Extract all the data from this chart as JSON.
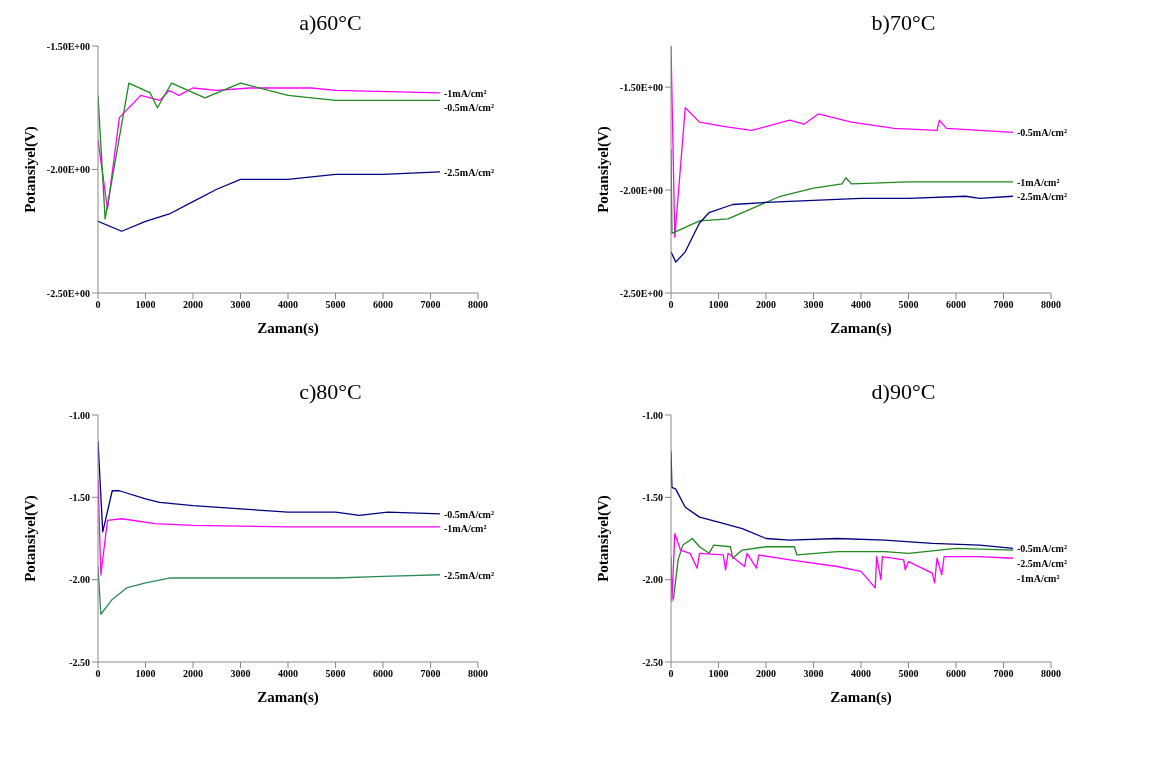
{
  "chart_data": [
    {
      "type": "line",
      "title": "a)60°C",
      "xlabel": "Zaman(s)",
      "ylabel": "Potansiyel(V)",
      "xlim": [
        0,
        8000
      ],
      "xticks": [
        0,
        1000,
        2000,
        3000,
        4000,
        5000,
        6000,
        7000,
        8000
      ],
      "ylim": [
        -2.5,
        -1.5
      ],
      "yticks": [
        {
          "value": -2.5,
          "label": "-2.50E+00"
        },
        {
          "value": -2.0,
          "label": "-2.00E+00"
        },
        {
          "value": -1.5,
          "label": "-1.50E+00"
        }
      ],
      "grid": false,
      "legend": false,
      "marker": "none",
      "line_style": "solid",
      "series": [
        {
          "name": "-1mA/cm²",
          "color": "#ff00ff",
          "x": [
            0,
            200,
            450,
            900,
            1100,
            1300,
            1500,
            1700,
            2000,
            2500,
            3200,
            4500,
            5000,
            7200
          ],
          "values": [
            -1.88,
            -2.16,
            -1.79,
            -1.7,
            -1.71,
            -1.72,
            -1.68,
            -1.7,
            -1.67,
            -1.68,
            -1.67,
            -1.67,
            -1.68,
            -1.69
          ]
        },
        {
          "name": "-0.5mA/cm²",
          "color": "#1f8a1f",
          "x": [
            0,
            150,
            650,
            1100,
            1250,
            1550,
            2250,
            3000,
            4000,
            5000,
            7200
          ],
          "values": [
            -1.7,
            -2.2,
            -1.65,
            -1.69,
            -1.75,
            -1.65,
            -1.71,
            -1.65,
            -1.7,
            -1.72,
            -1.72
          ]
        },
        {
          "name": "-2.5mA/cm²",
          "color": "#000080",
          "x": [
            0,
            500,
            1000,
            1500,
            2000,
            2500,
            3000,
            3500,
            4000,
            5000,
            6000,
            7200
          ],
          "values": [
            -2.21,
            -2.25,
            -2.21,
            -2.18,
            -2.13,
            -2.08,
            -2.04,
            -2.04,
            -2.04,
            -2.02,
            -2.02,
            -2.01
          ]
        }
      ]
    },
    {
      "type": "line",
      "title": "b)70°C",
      "xlabel": "Zaman(s)",
      "ylabel": "Potansiyel(V)",
      "xlim": [
        0,
        8000
      ],
      "xticks": [
        0,
        1000,
        2000,
        3000,
        4000,
        5000,
        6000,
        7000,
        8000
      ],
      "ylim": [
        -2.5,
        -1.3
      ],
      "yticks": [
        {
          "value": -2.5,
          "label": "-2.50E+00"
        },
        {
          "value": -2.0,
          "label": "-2.00E+00"
        },
        {
          "value": -1.5,
          "label": "-1.50E+00"
        }
      ],
      "grid": false,
      "legend": false,
      "marker": "none",
      "line_style": "solid",
      "series": [
        {
          "name": "-0.5mA/cm²",
          "color": "#ff00ff",
          "x": [
            0,
            80,
            300,
            600,
            1100,
            1700,
            2500,
            2800,
            3100,
            3800,
            4700,
            5600,
            5650,
            5800,
            7200
          ],
          "values": [
            -1.3,
            -2.23,
            -1.6,
            -1.67,
            -1.69,
            -1.71,
            -1.66,
            -1.68,
            -1.63,
            -1.67,
            -1.7,
            -1.71,
            -1.66,
            -1.7,
            -1.72
          ]
        },
        {
          "name": "-1mA/cm²",
          "color": "#1f8a1f",
          "x": [
            0,
            20,
            600,
            1200,
            1700,
            2300,
            3000,
            3600,
            3680,
            3800,
            5000,
            7200
          ],
          "values": [
            -1.8,
            -2.21,
            -2.15,
            -2.14,
            -2.09,
            -2.03,
            -1.99,
            -1.97,
            -1.94,
            -1.97,
            -1.96,
            -1.96
          ]
        },
        {
          "name": "-2.5mA/cm²",
          "color": "#000080",
          "x": [
            0,
            100,
            300,
            600,
            800,
            1300,
            2000,
            3000,
            4000,
            5000,
            6200,
            6500,
            7200
          ],
          "values": [
            -2.3,
            -2.35,
            -2.3,
            -2.16,
            -2.11,
            -2.07,
            -2.06,
            -2.05,
            -2.04,
            -2.04,
            -2.03,
            -2.04,
            -2.03
          ]
        }
      ]
    },
    {
      "type": "line",
      "title": "c)80°C",
      "xlabel": "Zaman(s)",
      "ylabel": "Potansiyel(V)",
      "xlim": [
        0,
        8000
      ],
      "xticks": [
        0,
        1000,
        2000,
        3000,
        4000,
        5000,
        6000,
        7000,
        8000
      ],
      "ylim": [
        -2.5,
        -1.0
      ],
      "yticks": [
        {
          "value": -2.5,
          "label": "-2.50"
        },
        {
          "value": -2.0,
          "label": "-2.00"
        },
        {
          "value": -1.5,
          "label": "-1.50"
        },
        {
          "value": -1.0,
          "label": "-1.00"
        }
      ],
      "grid": false,
      "legend": false,
      "marker": "none",
      "line_style": "solid",
      "series": [
        {
          "name": "-0.5mA/cm²",
          "color": "#000080",
          "x": [
            0,
            100,
            300,
            450,
            1000,
            1300,
            2000,
            3000,
            4000,
            5000,
            5500,
            6100,
            7200
          ],
          "values": [
            -1.16,
            -1.71,
            -1.46,
            -1.46,
            -1.51,
            -1.53,
            -1.55,
            -1.57,
            -1.59,
            -1.59,
            -1.61,
            -1.59,
            -1.6
          ]
        },
        {
          "name": "-1mA/cm²",
          "color": "#ff00ff",
          "x": [
            0,
            60,
            200,
            500,
            1200,
            2000,
            4000,
            5000,
            7200
          ],
          "values": [
            -1.39,
            -1.97,
            -1.64,
            -1.63,
            -1.66,
            -1.67,
            -1.68,
            -1.68,
            -1.68
          ]
        },
        {
          "name": "-2.5mA/cm²",
          "color": "#2e8b57",
          "x": [
            0,
            60,
            300,
            600,
            1000,
            1500,
            3000,
            5000,
            6000,
            7200
          ],
          "values": [
            -1.92,
            -2.21,
            -2.12,
            -2.05,
            -2.02,
            -1.99,
            -1.99,
            -1.99,
            -1.98,
            -1.97
          ]
        }
      ]
    },
    {
      "type": "line",
      "title": "d)90°C",
      "xlabel": "Zaman(s)",
      "ylabel": "Potansiyel(V)",
      "xlim": [
        0,
        8000
      ],
      "xticks": [
        0,
        1000,
        2000,
        3000,
        4000,
        5000,
        6000,
        7000,
        8000
      ],
      "ylim": [
        -2.5,
        -1.0
      ],
      "yticks": [
        {
          "value": -2.5,
          "label": "-2.50"
        },
        {
          "value": -2.0,
          "label": "-2.00"
        },
        {
          "value": -1.5,
          "label": "-1.50"
        },
        {
          "value": -1.0,
          "label": "-1.00"
        }
      ],
      "grid": false,
      "legend": false,
      "marker": "none",
      "line_style": "solid",
      "series": [
        {
          "name": "-0.5mA/cm²",
          "color": "#000080",
          "x": [
            0,
            20,
            100,
            300,
            600,
            1000,
            1500,
            2000,
            2500,
            3500,
            4500,
            5500,
            6500,
            7200
          ],
          "values": [
            -1.22,
            -1.44,
            -1.45,
            -1.56,
            -1.62,
            -1.65,
            -1.69,
            -1.75,
            -1.76,
            -1.75,
            -1.76,
            -1.78,
            -1.79,
            -1.81
          ]
        },
        {
          "name": "-2.5mA/cm²",
          "color": "#1f8a1f",
          "x": [
            50,
            150,
            250,
            450,
            600,
            800,
            900,
            1250,
            1300,
            1500,
            2000,
            2600,
            2650,
            3500,
            4500,
            5000,
            6000,
            7200
          ],
          "values": [
            -2.12,
            -1.88,
            -1.79,
            -1.75,
            -1.8,
            -1.84,
            -1.79,
            -1.8,
            -1.87,
            -1.82,
            -1.8,
            -1.8,
            -1.85,
            -1.83,
            -1.83,
            -1.84,
            -1.81,
            -1.82
          ]
        },
        {
          "name": "-1mA/cm²",
          "color": "#ff00ff",
          "x": [
            0,
            20,
            80,
            200,
            400,
            550,
            600,
            1100,
            1150,
            1200,
            1550,
            1600,
            1800,
            1850,
            2500,
            3500,
            4000,
            4300,
            4330,
            4420,
            4450,
            4900,
            4930,
            5000,
            5500,
            5550,
            5600,
            5700,
            5750,
            6500,
            7200
          ],
          "values": [
            -1.86,
            -2.13,
            -1.72,
            -1.82,
            -1.84,
            -1.93,
            -1.84,
            -1.85,
            -1.94,
            -1.84,
            -1.92,
            -1.84,
            -1.93,
            -1.85,
            -1.88,
            -1.92,
            -1.95,
            -2.05,
            -1.86,
            -2.0,
            -1.86,
            -1.88,
            -1.94,
            -1.89,
            -1.96,
            -2.02,
            -1.87,
            -1.97,
            -1.86,
            -1.86,
            -1.87
          ]
        }
      ]
    }
  ]
}
